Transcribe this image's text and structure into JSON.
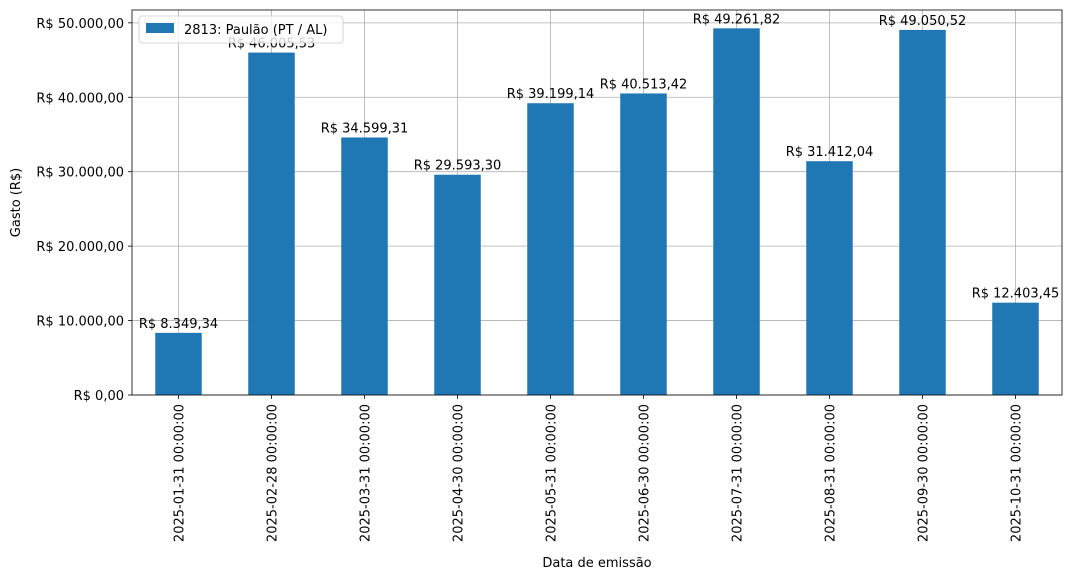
{
  "chart_data": {
    "type": "bar",
    "categories": [
      "2025-01-31 00:00:00",
      "2025-02-28 00:00:00",
      "2025-03-31 00:00:00",
      "2025-04-30 00:00:00",
      "2025-05-31 00:00:00",
      "2025-06-30 00:00:00",
      "2025-07-31 00:00:00",
      "2025-08-31 00:00:00",
      "2025-09-30 00:00:00",
      "2025-10-31 00:00:00"
    ],
    "series": [
      {
        "name": "2813: Paulão (PT / AL)",
        "color": "#1f77b4",
        "values": [
          8349.34,
          46005.53,
          34599.31,
          29593.3,
          39199.14,
          40513.42,
          49261.82,
          31412.04,
          49050.52,
          12403.45
        ],
        "data_labels": [
          "R$ 8.349,34",
          "R$ 46.005,53",
          "R$ 34.599,31",
          "R$ 29.593,30",
          "R$ 39.199,14",
          "R$ 40.513,42",
          "R$ 49.261,82",
          "R$ 31.412,04",
          "R$ 49.050,52",
          "R$ 12.403,45"
        ]
      }
    ],
    "title": "",
    "xlabel": "Data de emissão",
    "ylabel": "Gasto (R$)",
    "ylim": [
      0,
      51724.91
    ],
    "y_ticks": [
      {
        "value": 0,
        "label": "R$ 0,00"
      },
      {
        "value": 10000,
        "label": "R$ 10.000,00"
      },
      {
        "value": 20000,
        "label": "R$ 20.000,00"
      },
      {
        "value": 30000,
        "label": "R$ 30.000,00"
      },
      {
        "value": 40000,
        "label": "R$ 40.000,00"
      },
      {
        "value": 50000,
        "label": "R$ 50.000,00"
      }
    ],
    "grid": true,
    "legend_position": "top-left",
    "colors": {
      "grid": "#b0b0b0",
      "axis": "#000000"
    }
  }
}
